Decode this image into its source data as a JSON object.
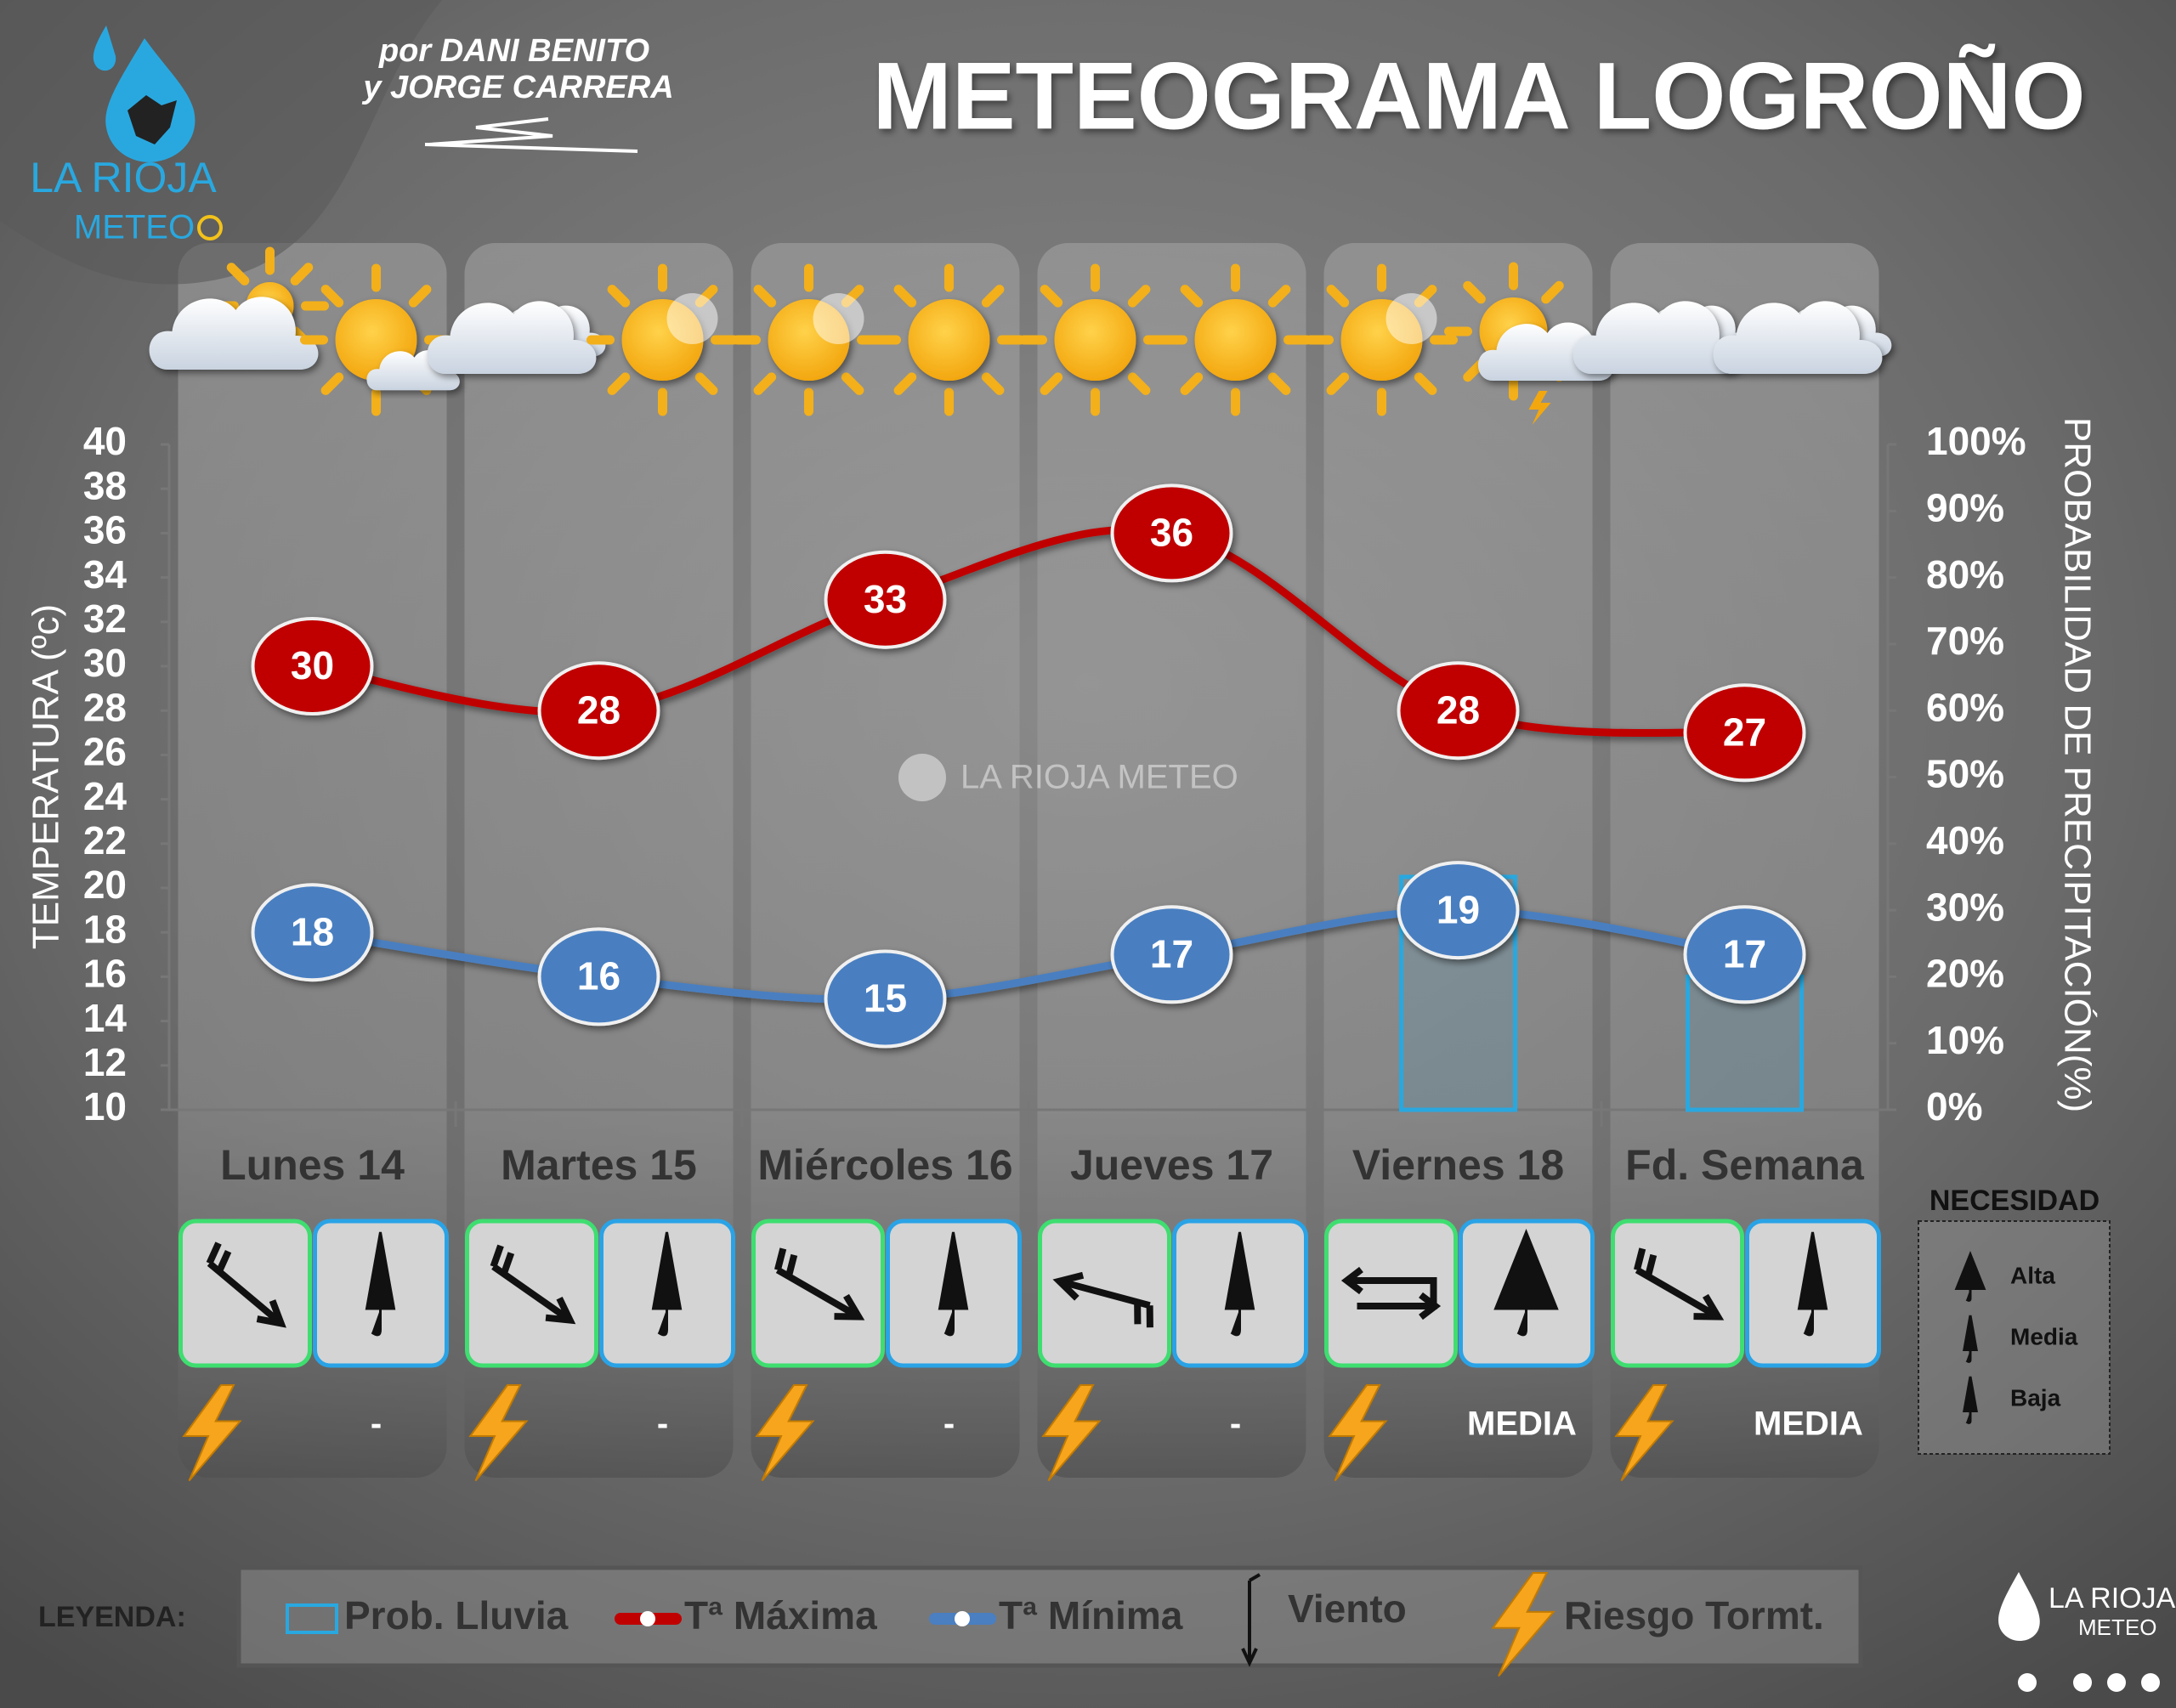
{
  "chart_data": {
    "type": "meteogram",
    "title": "METEOGRAMA LOGROÑO",
    "credits": [
      "por DANI BENITO",
      "y JORGE CARRERA"
    ],
    "logo_text": [
      "LA RIOJA",
      "METEO"
    ],
    "watermark": "LA RIOJA METEO",
    "footer_logo": [
      "LA RIOJA",
      "METEO"
    ],
    "y_label": "TEMPERATURA (ºc)",
    "y2_label": "PROBABILIDAD DE PRECIPITACIÓN(%)",
    "categories": [
      "Lunes 14",
      "Martes 15",
      "Miércoles 16",
      "Jueves 17",
      "Viernes 18",
      "Fd. Semana"
    ],
    "ylim": [
      10,
      40
    ],
    "yticks": [
      10,
      12,
      14,
      16,
      18,
      20,
      22,
      24,
      26,
      28,
      30,
      32,
      34,
      36,
      38,
      40
    ],
    "y2lim": [
      0,
      100
    ],
    "y2ticks": [
      {
        "value": 0,
        "label": "0%"
      },
      {
        "value": 10,
        "label": "10%"
      },
      {
        "value": 20,
        "label": "20%"
      },
      {
        "value": 30,
        "label": "30%"
      },
      {
        "value": 40,
        "label": "40%"
      },
      {
        "value": 50,
        "label": "50%"
      },
      {
        "value": 60,
        "label": "60%"
      },
      {
        "value": 70,
        "label": "70%"
      },
      {
        "value": 80,
        "label": "80%"
      },
      {
        "value": 90,
        "label": "90%"
      },
      {
        "value": 100,
        "label": "100%"
      }
    ],
    "series": [
      {
        "name": "Prob. Lluvia",
        "color": "#29a8e0",
        "axis": "y2",
        "kind": "bar",
        "values": [
          0,
          0,
          0,
          0,
          35,
          20
        ]
      },
      {
        "name": "Tª Máxima",
        "color": "#c00000",
        "kind": "line",
        "values": [
          30,
          28,
          33,
          36,
          28,
          27
        ]
      },
      {
        "name": "Tª Mínima",
        "color": "#4a7fc1",
        "kind": "line",
        "values": [
          18,
          16,
          15,
          17,
          19,
          17
        ]
      }
    ],
    "storm_risk": [
      "-",
      "-",
      "-",
      "-",
      "MEDIA",
      "MEDIA"
    ],
    "legend_title": "LEYENDA:",
    "legend_extra": [
      "Viento",
      "Riesgo Tormt."
    ],
    "need_title": "NECESIDAD",
    "need_levels": [
      "Alta",
      "Media",
      "Baja"
    ]
  }
}
